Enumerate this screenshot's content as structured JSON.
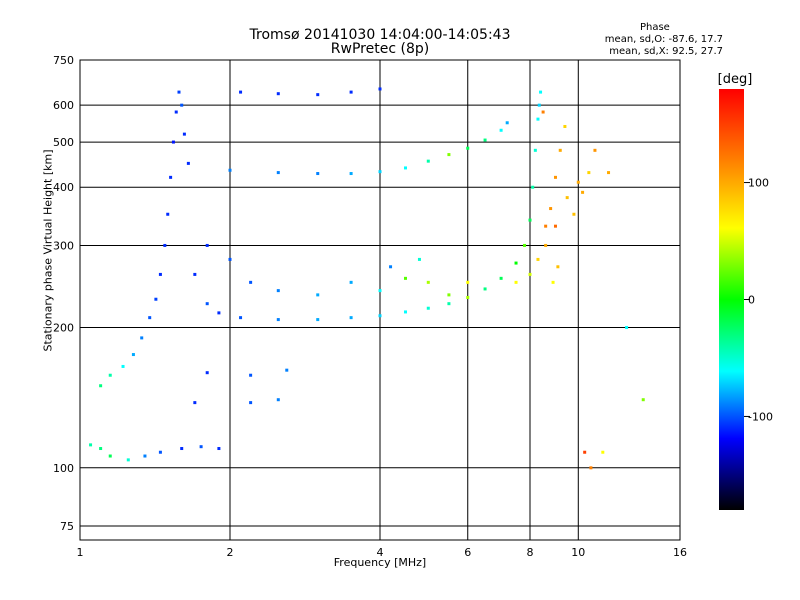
{
  "header": {
    "title_line1": "Tromsø 20141030 14:04:00-14:05:43",
    "title_line2": "RwPretec (8p)",
    "phase_title": "Phase",
    "phase_line1": "mean, sd,O: -87.6, 17.7",
    "phase_line2": "mean, sd,X:  92.5, 27.7"
  },
  "colorbar": {
    "unit": "[deg]",
    "ticks": [
      "100",
      "0",
      "-100"
    ],
    "colors": [
      "#ff0000",
      "#ff8000",
      "#ffff00",
      "#00ff00",
      "#00ffff",
      "#0000ff",
      "#000000"
    ]
  },
  "chart_data": {
    "type": "scatter",
    "xlabel": "Frequency [MHz]",
    "ylabel": "Stationary phase Virtual Height [km]",
    "x_scale": "log",
    "y_scale": "log",
    "xlim": [
      1,
      16
    ],
    "ylim": [
      70,
      750
    ],
    "x_ticks": [
      1,
      2,
      4,
      6,
      8,
      10,
      16
    ],
    "x_tick_labels": [
      "1",
      "2",
      "4",
      "6",
      "8",
      "10",
      "16"
    ],
    "y_ticks": [
      75,
      100,
      200,
      300,
      400,
      500,
      600,
      750
    ],
    "y_tick_labels": [
      "75",
      "100",
      "200",
      "300",
      "400",
      "500",
      "600",
      "750"
    ],
    "grid": true,
    "color_scale_deg": [
      -180,
      180
    ],
    "series": [
      {
        "name": "O",
        "points": [
          [
            1.05,
            112,
            -40
          ],
          [
            1.1,
            110,
            -30
          ],
          [
            1.15,
            106,
            -20
          ],
          [
            1.25,
            104,
            -50
          ],
          [
            1.35,
            106,
            -90
          ],
          [
            1.45,
            108,
            -100
          ],
          [
            1.6,
            110,
            -110
          ],
          [
            1.75,
            111,
            -100
          ],
          [
            1.9,
            110,
            -110
          ],
          [
            1.1,
            150,
            -30
          ],
          [
            1.15,
            158,
            -40
          ],
          [
            1.22,
            165,
            -60
          ],
          [
            1.28,
            175,
            -80
          ],
          [
            1.33,
            190,
            -90
          ],
          [
            1.38,
            210,
            -100
          ],
          [
            1.42,
            230,
            -105
          ],
          [
            1.45,
            260,
            -110
          ],
          [
            1.48,
            300,
            -110
          ],
          [
            1.5,
            350,
            -110
          ],
          [
            1.52,
            420,
            -110
          ],
          [
            1.54,
            500,
            -115
          ],
          [
            1.56,
            580,
            -110
          ],
          [
            1.58,
            640,
            -105
          ],
          [
            1.6,
            600,
            -100
          ],
          [
            1.62,
            520,
            -110
          ],
          [
            1.65,
            450,
            -110
          ],
          [
            1.7,
            260,
            -110
          ],
          [
            1.8,
            225,
            -100
          ],
          [
            1.9,
            215,
            -110
          ],
          [
            2.1,
            210,
            -100
          ],
          [
            2.5,
            208,
            -90
          ],
          [
            3,
            208,
            -80
          ],
          [
            3.5,
            210,
            -80
          ],
          [
            4,
            212,
            -70
          ],
          [
            4.5,
            216,
            -60
          ],
          [
            5,
            220,
            -50
          ],
          [
            5.5,
            225,
            -40
          ],
          [
            6,
            232,
            40
          ],
          [
            6.5,
            242,
            -30
          ],
          [
            7,
            255,
            -20
          ],
          [
            7.5,
            275,
            0
          ],
          [
            7.8,
            300,
            20
          ],
          [
            8,
            340,
            -20
          ],
          [
            8.1,
            400,
            -40
          ],
          [
            8.2,
            480,
            -50
          ],
          [
            8.3,
            560,
            -60
          ],
          [
            8.35,
            600,
            -70
          ],
          [
            8.4,
            640,
            -60
          ],
          [
            2,
            435,
            -90
          ],
          [
            2.5,
            430,
            -90
          ],
          [
            3,
            428,
            -90
          ],
          [
            3.5,
            428,
            -80
          ],
          [
            4,
            432,
            -70
          ],
          [
            4.5,
            440,
            -60
          ],
          [
            5,
            455,
            -40
          ],
          [
            5.5,
            470,
            30
          ],
          [
            6,
            485,
            -20
          ],
          [
            6.5,
            505,
            -30
          ],
          [
            7,
            530,
            -60
          ],
          [
            7.2,
            550,
            -80
          ],
          [
            2.1,
            640,
            -110
          ],
          [
            2.5,
            635,
            -110
          ],
          [
            3,
            632,
            -110
          ],
          [
            3.5,
            640,
            -110
          ],
          [
            4,
            650,
            -110
          ],
          [
            1.8,
            160,
            -110
          ],
          [
            2.2,
            158,
            -100
          ],
          [
            2.6,
            162,
            -90
          ],
          [
            1.7,
            138,
            -110
          ],
          [
            2.2,
            138,
            -100
          ],
          [
            2.5,
            140,
            -90
          ],
          [
            1.8,
            300,
            -110
          ],
          [
            2.0,
            280,
            -100
          ],
          [
            2.2,
            250,
            -100
          ],
          [
            2.5,
            240,
            -90
          ],
          [
            3,
            235,
            -80
          ],
          [
            3.5,
            250,
            -80
          ],
          [
            4,
            240,
            -60
          ],
          [
            4.5,
            255,
            20
          ],
          [
            5,
            250,
            40
          ],
          [
            5.5,
            235,
            30
          ],
          [
            6,
            250,
            60
          ],
          [
            4.2,
            270,
            -90
          ],
          [
            4.8,
            280,
            -50
          ]
        ]
      },
      {
        "name": "X",
        "points": [
          [
            8.6,
            300,
            100
          ],
          [
            8.8,
            360,
            110
          ],
          [
            9,
            420,
            110
          ],
          [
            9.2,
            480,
            100
          ],
          [
            9.4,
            540,
            80
          ],
          [
            8.9,
            250,
            60
          ],
          [
            9.1,
            270,
            90
          ],
          [
            9.5,
            380,
            90
          ],
          [
            10,
            410,
            100
          ],
          [
            10.5,
            430,
            80
          ],
          [
            10.8,
            480,
            110
          ],
          [
            9.8,
            350,
            90
          ],
          [
            10.2,
            390,
            100
          ],
          [
            8.5,
            580,
            120
          ],
          [
            7.5,
            250,
            60
          ],
          [
            8.0,
            260,
            50
          ],
          [
            8.3,
            280,
            80
          ],
          [
            8.6,
            330,
            120
          ],
          [
            9.0,
            330,
            130
          ],
          [
            11.5,
            430,
            100
          ],
          [
            10.3,
            108,
            150
          ],
          [
            10.6,
            100,
            120
          ],
          [
            11.2,
            108,
            60
          ],
          [
            12.5,
            200,
            -60
          ],
          [
            13.5,
            140,
            30
          ]
        ]
      }
    ]
  }
}
